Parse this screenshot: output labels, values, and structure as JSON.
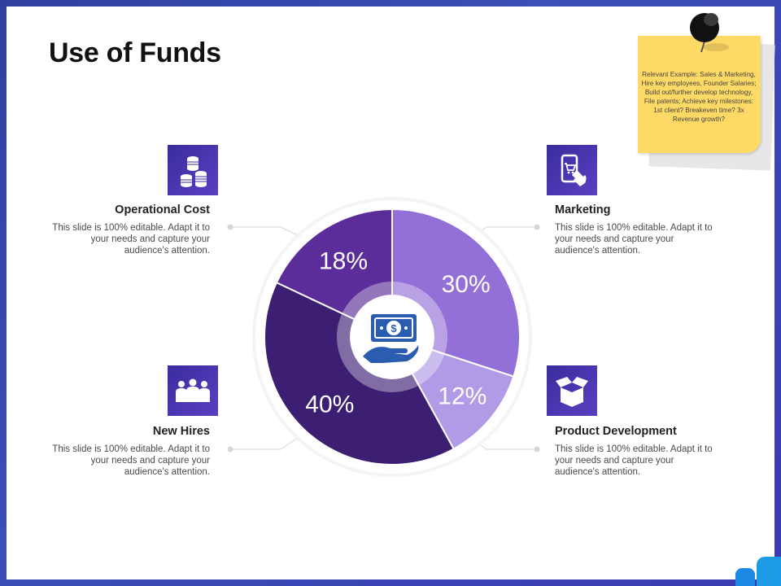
{
  "title": "Use of Funds",
  "note": {
    "text": "Relevant Example: Sales & Marketing, Hire key employees, Founder Salaries; Build out/further develop technology, File patents; Achieve key milestones: 1st client? Breakeven time? 3x Revenue growth?"
  },
  "items": {
    "operational_cost": {
      "heading": "Operational Cost",
      "desc": "This slide is 100% editable. Adapt it to your needs and capture your audience's attention.",
      "icon": "coins-icon"
    },
    "marketing": {
      "heading": "Marketing",
      "desc": "This slide is 100% editable. Adapt it to your needs and capture your audience's attention.",
      "icon": "mobile-shopping-icon"
    },
    "new_hires": {
      "heading": "New Hires",
      "desc": "This slide is 100% editable. Adapt it to your needs and capture your audience's attention.",
      "icon": "team-icon"
    },
    "product_development": {
      "heading": "Product Development",
      "desc": "This slide is 100% editable. Adapt it to your needs and capture your audience's attention.",
      "icon": "open-box-icon"
    }
  },
  "center_icon": "money-in-hand-icon",
  "colors": {
    "accent_dark": "#3a2c9e",
    "note_yellow": "#ffd966"
  },
  "chart_data": {
    "type": "pie",
    "donut": true,
    "start": "top",
    "direction": "clockwise",
    "slices": [
      {
        "category": "Marketing",
        "value": 30,
        "label": "30%",
        "color": "#9370d8"
      },
      {
        "category": "Product Development",
        "value": 12,
        "label": "12%",
        "color": "#b19ae6"
      },
      {
        "category": "New Hires",
        "value": 40,
        "label": "40%",
        "color": "#3c1f72"
      },
      {
        "category": "Operational Cost",
        "value": 18,
        "label": "18%",
        "color": "#5b2d9a"
      }
    ]
  }
}
